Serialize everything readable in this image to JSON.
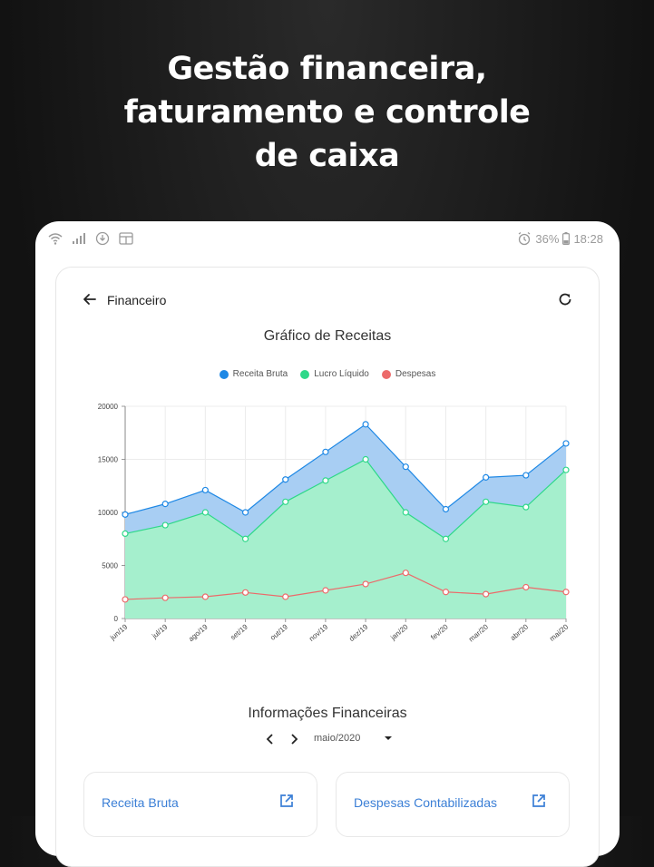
{
  "headline": {
    "line1": "Gestão financeira,",
    "line2": "faturamento e controle",
    "line3": "de caixa"
  },
  "statusbar": {
    "battery": "36%",
    "time": "18:28",
    "icons": [
      "wifi-icon",
      "signal-icon",
      "download-icon",
      "notification-icon",
      "alarm-icon",
      "battery-icon"
    ]
  },
  "appbar": {
    "title": "Financeiro",
    "icons": [
      "arrow-left-icon",
      "refresh-icon"
    ]
  },
  "chart_data": {
    "type": "area",
    "title": "Gráfico de Receitas",
    "categories": [
      "jun/19",
      "jul/19",
      "ago/19",
      "set/19",
      "out/19",
      "nov/19",
      "dez/19",
      "jan/20",
      "fev/20",
      "mar/20",
      "abr/20",
      "mai/20"
    ],
    "series": [
      {
        "name": "Receita Bruta",
        "color": "#1e88e5",
        "values": [
          9800,
          10800,
          12100,
          10000,
          13100,
          15700,
          18300,
          14300,
          10300,
          13300,
          13500,
          16500
        ]
      },
      {
        "name": "Lucro Líquido",
        "color": "#2ed889",
        "values": [
          8000,
          8800,
          10000,
          7500,
          11000,
          13000,
          15000,
          10000,
          7500,
          11000,
          10500,
          14000
        ]
      },
      {
        "name": "Despesas",
        "color": "#ec6a6a",
        "values": [
          1800,
          1950,
          2050,
          2450,
          2050,
          2650,
          3250,
          4300,
          2500,
          2300,
          2950,
          2500
        ]
      }
    ],
    "yticks": [
      "0",
      "5000",
      "10000",
      "15000",
      "20000"
    ],
    "ylim": [
      0,
      20000
    ],
    "grid": true,
    "legend_position": "top"
  },
  "info": {
    "title": "Informações Financeiras",
    "month": "maio/2020"
  },
  "tiles": [
    {
      "label": "Receita Bruta"
    },
    {
      "label": "Despesas Contabilizadas"
    }
  ]
}
